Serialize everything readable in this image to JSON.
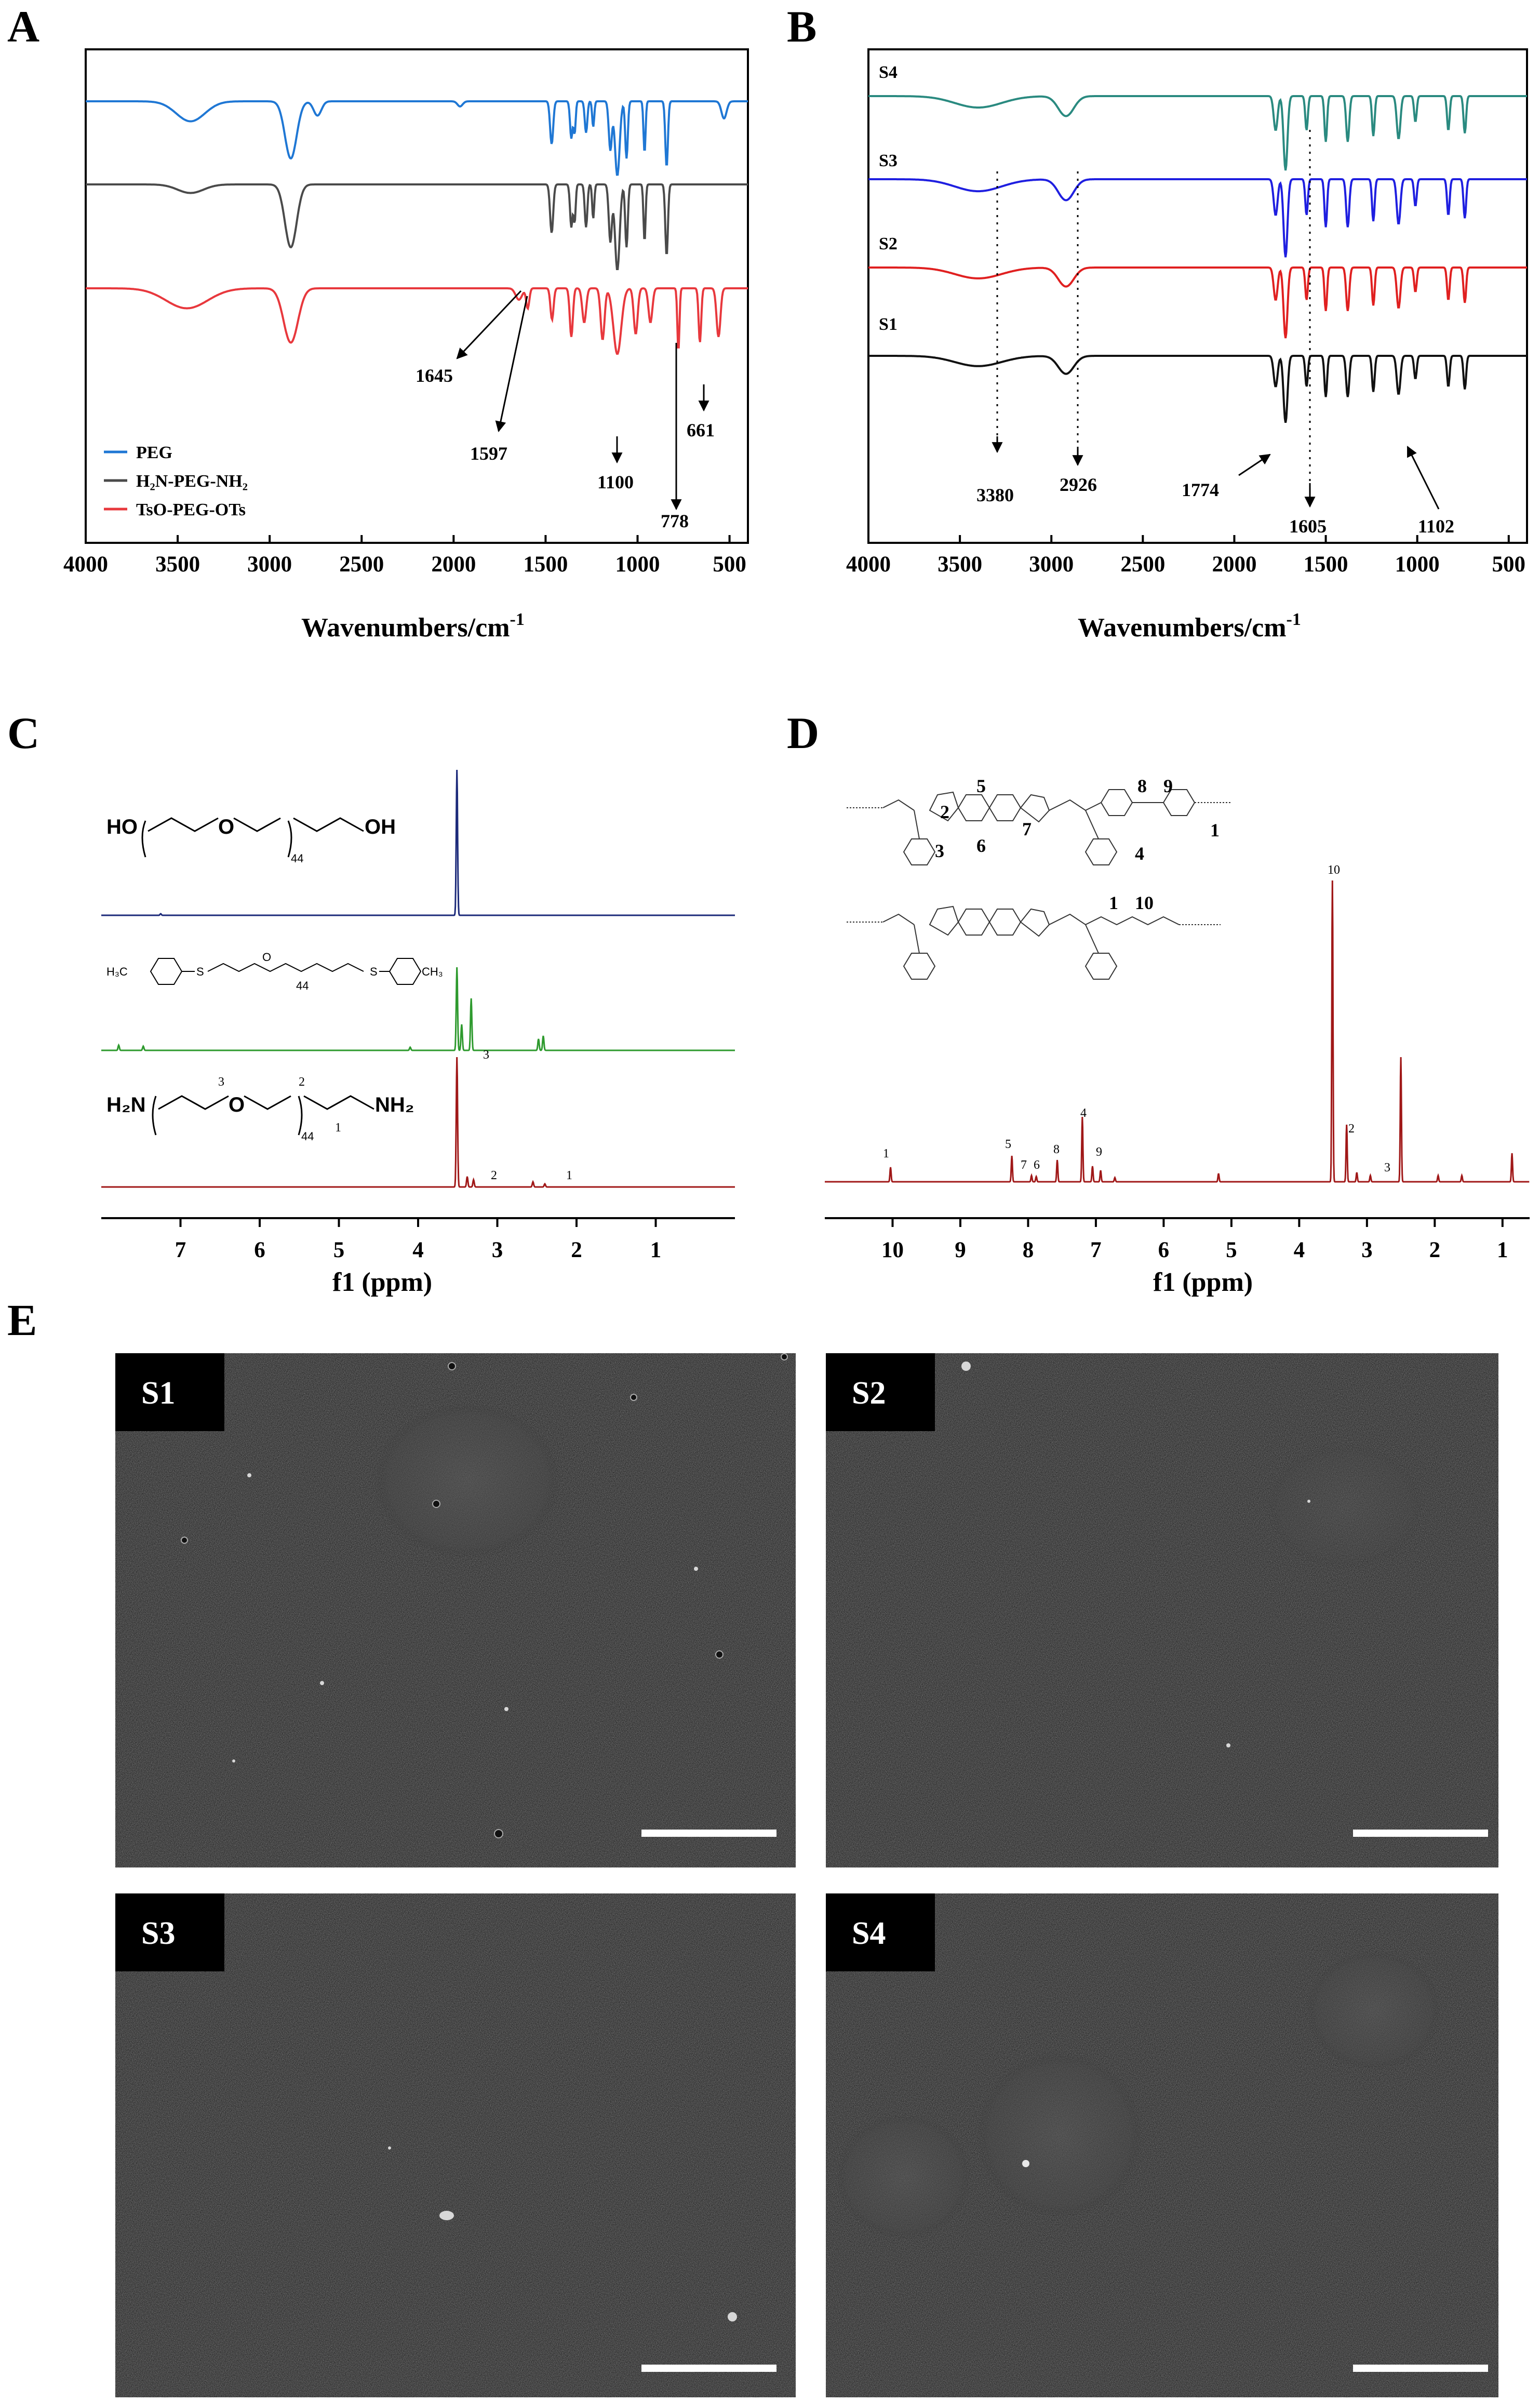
{
  "panels": {
    "A": "A",
    "B": "B",
    "C": "C",
    "D": "D",
    "E": "E"
  },
  "chart_data": [
    {
      "id": "A",
      "type": "line",
      "xlabel_main": "Wavenumbers/cm",
      "xlabel_sup": "-1",
      "xlim": [
        4000,
        400
      ],
      "xticks": [
        "4000",
        "3500",
        "3000",
        "2500",
        "2000",
        "1500",
        "1000",
        "500"
      ],
      "legend": [
        "PEG",
        "H₂N-PEG-NH₂",
        "TsO-PEG-OTs"
      ],
      "legend_placement": "bottom-left",
      "series": [
        {
          "name": "PEG",
          "color": "#1f77d4",
          "offset": 0
        },
        {
          "name": "H₂N-PEG-NH₂",
          "color": "#4a4a4a",
          "offset": 160
        },
        {
          "name": "TsO-PEG-OTs",
          "color": "#e8383d",
          "offset": 360
        }
      ],
      "annotations": [
        "1645",
        "1597",
        "1100",
        "778",
        "661"
      ]
    },
    {
      "id": "B",
      "type": "line",
      "xlabel_main": "Wavenumbers/cm",
      "xlabel_sup": "-1",
      "xlim": [
        4000,
        400
      ],
      "xticks": [
        "4000",
        "3500",
        "3000",
        "2500",
        "2000",
        "1500",
        "1000",
        "500"
      ],
      "series": [
        {
          "name": "S4",
          "color": "#2a8a80",
          "offset": 0
        },
        {
          "name": "S3",
          "color": "#1f1fe0",
          "offset": 160
        },
        {
          "name": "S2",
          "color": "#e02020",
          "offset": 330
        },
        {
          "name": "S1",
          "color": "#111111",
          "offset": 500
        }
      ],
      "annotations": [
        "3380",
        "2926",
        "1774",
        "1605",
        "1102"
      ]
    },
    {
      "id": "C",
      "type": "line",
      "xlabel": "f1 (ppm)",
      "xlim": [
        8,
        0
      ],
      "xticks": [
        "7",
        "6",
        "5",
        "4",
        "3",
        "2",
        "1"
      ],
      "series": [
        {
          "name": "HO-PEG-OH",
          "color": "#1c2a7a"
        },
        {
          "name": "TsO-PEG-OTs",
          "color": "#2e9a2e"
        },
        {
          "name": "H2N-PEG-NH2",
          "color": "#a01818"
        }
      ],
      "peak_labels": [
        "3",
        "2",
        "1"
      ],
      "structures": {
        "peg": {
          "left": "HO",
          "right": "OH",
          "o": "O",
          "n": "44"
        },
        "tos": {
          "ch3a": "H₃C",
          "o": "O",
          "s": "S",
          "n": "44",
          "ch3b": "CH₃"
        },
        "amine": {
          "left": "H₂N",
          "right": "NH₂",
          "o": "O",
          "n": "44",
          "n1": "3",
          "n2": "2",
          "n3": "1"
        }
      }
    },
    {
      "id": "D",
      "type": "line",
      "xlabel": "f1 (ppm)",
      "xlim": [
        11,
        0.6
      ],
      "xticks": [
        "10",
        "9",
        "8",
        "7",
        "6",
        "5",
        "4",
        "3",
        "2",
        "1"
      ],
      "series": [
        {
          "name": "S",
          "color": "#a01818"
        }
      ],
      "peak_labels": [
        "1",
        "5",
        "7",
        "6",
        "8",
        "4",
        "9",
        "10",
        "2",
        "3"
      ],
      "structure_labels": [
        "5",
        "2",
        "3",
        "6",
        "7",
        "8",
        "9",
        "1",
        "4",
        "1",
        "10"
      ]
    }
  ],
  "sem": {
    "tiles": [
      "S1",
      "S2",
      "S3",
      "S4"
    ]
  }
}
